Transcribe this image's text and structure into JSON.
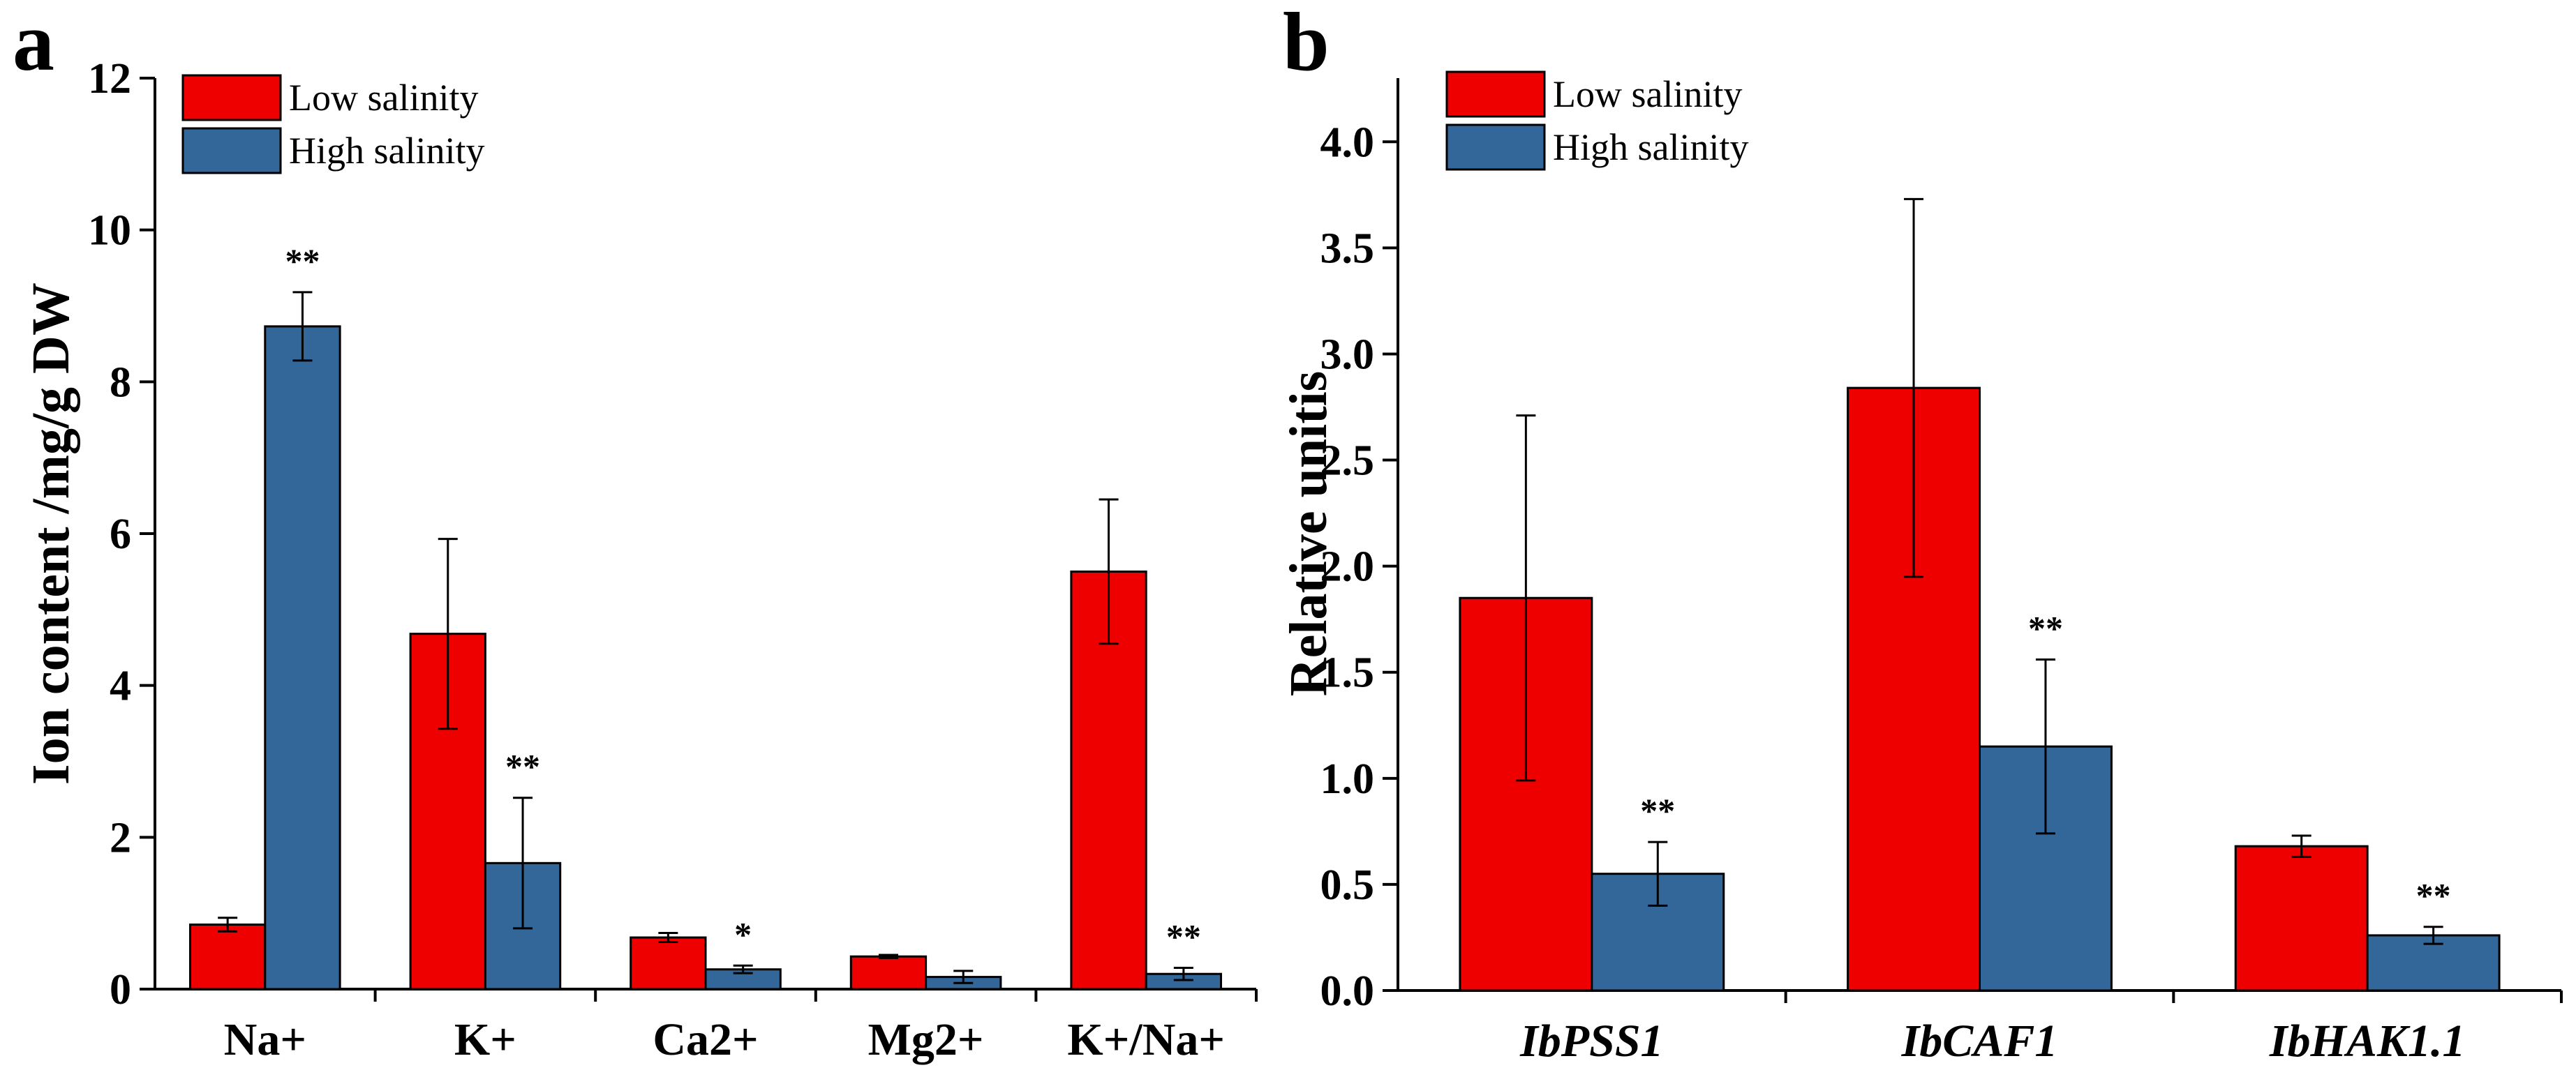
{
  "colors": {
    "low": "#EE0000",
    "high": "#336699"
  },
  "chart_data": [
    {
      "type": "bar",
      "panel": "a",
      "ylabel": "Ion content /mg/g DW",
      "xlabel": "",
      "ylim": [
        0,
        12
      ],
      "yticks": [
        "0",
        "2",
        "4",
        "6",
        "8",
        "10",
        "12"
      ],
      "categories": [
        "Na+",
        "K+",
        "Ca2+",
        "Mg2+",
        "K+/Na+"
      ],
      "italic_categories": false,
      "legend": [
        "Low salinity",
        "High salinity"
      ],
      "series": [
        {
          "name": "Low salinity",
          "values": [
            0.85,
            4.68,
            0.68,
            0.43,
            5.5
          ],
          "errors": [
            0.09,
            1.25,
            0.06,
            0.02,
            0.95
          ]
        },
        {
          "name": "High salinity",
          "values": [
            8.73,
            1.66,
            0.26,
            0.16,
            0.2
          ],
          "errors": [
            0.45,
            0.86,
            0.05,
            0.08,
            0.08
          ]
        }
      ],
      "annotations": [
        "**",
        "**",
        "*",
        "",
        "**"
      ]
    },
    {
      "type": "bar",
      "panel": "b",
      "ylabel": "Relative unitis",
      "xlabel": "",
      "ylim": [
        0,
        4.3
      ],
      "yticks": [
        "0.0",
        "0.5",
        "1.0",
        "1.5",
        "2.0",
        "2.5",
        "3.0",
        "3.5",
        "4.0"
      ],
      "categories": [
        "IbPSS1",
        "IbCAF1",
        "IbHAK1.1"
      ],
      "italic_categories": true,
      "legend": [
        "Low salinity",
        "High salinity"
      ],
      "series": [
        {
          "name": "Low salinity",
          "values": [
            1.85,
            2.84,
            0.68
          ],
          "errors": [
            0.86,
            0.89,
            0.05
          ]
        },
        {
          "name": "High salinity",
          "values": [
            0.55,
            1.15,
            0.26
          ],
          "errors": [
            0.15,
            0.41,
            0.04
          ]
        }
      ],
      "annotations": [
        "**",
        "**",
        "**"
      ]
    }
  ]
}
